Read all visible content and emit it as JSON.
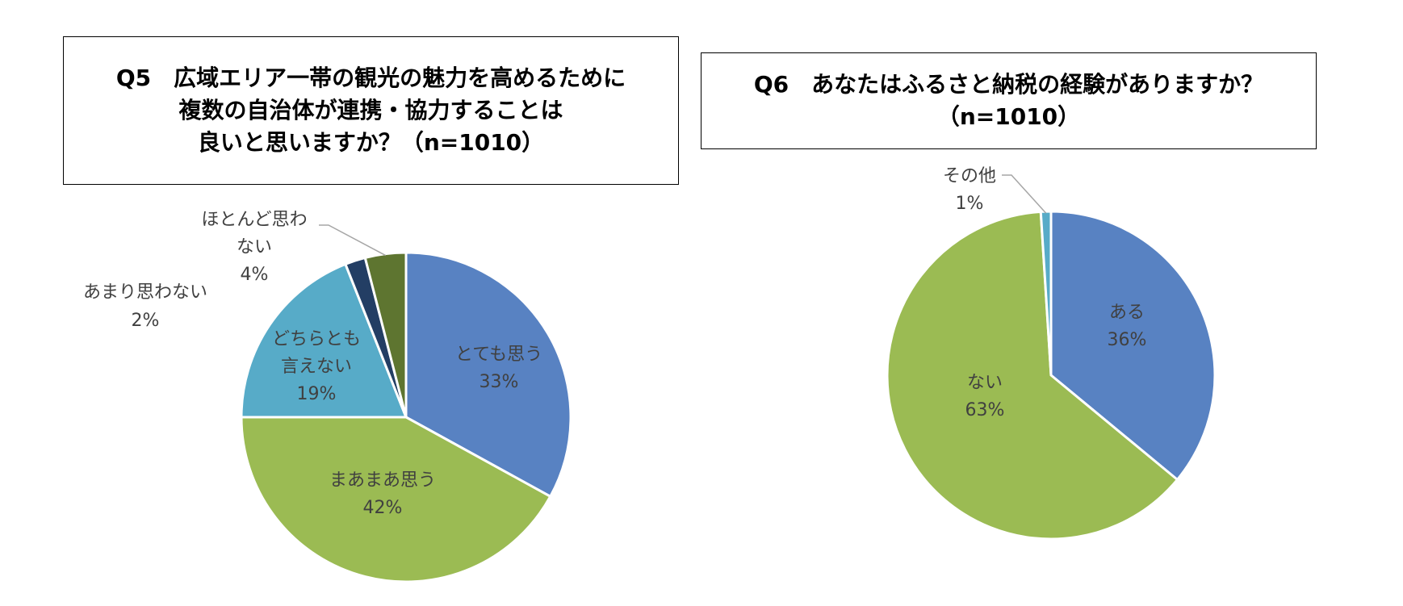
{
  "questions": [
    {
      "title_lines": [
        "Q5　広域エリア一帯の観光の魅力を高めるために",
        "複数の自治体が連携・協力することは",
        "良いと思いますか？（n=1010）"
      ]
    },
    {
      "title_lines": [
        "Q6　あなたはふるさと納税の経験がありますか？",
        "（n=1010）"
      ]
    }
  ],
  "chart_data": [
    {
      "type": "pie",
      "title": "Q5　広域エリア一帯の観光の魅力を高めるために複数の自治体が連携・協力することは良いと思いますか？（n=1010）",
      "slices": [
        {
          "label": "とても思う",
          "value": 33,
          "value_label": "33%",
          "color": "#5882c2"
        },
        {
          "label": "まあまあ思う",
          "value": 42,
          "value_label": "42%",
          "color": "#9bbb53"
        },
        {
          "label": "どちらとも言えない",
          "value": 19,
          "value_label": "19%",
          "color": "#57abc8"
        },
        {
          "label": "あまり思わない",
          "value": 2,
          "value_label": "2%",
          "color": "#233e64"
        },
        {
          "label": "ほとんど思わない",
          "value": 4,
          "value_label": "4%",
          "color": "#5e7530"
        }
      ]
    },
    {
      "type": "pie",
      "title": "Q6　あなたはふるさと納税の経験がありますか？（n=1010）",
      "slices": [
        {
          "label": "ある",
          "value": 36,
          "value_label": "36%",
          "color": "#5882c2"
        },
        {
          "label": "ない",
          "value": 63,
          "value_label": "63%",
          "color": "#9bbb53"
        },
        {
          "label": "その他",
          "value": 1,
          "value_label": "1%",
          "color": "#57abc8"
        }
      ]
    }
  ]
}
